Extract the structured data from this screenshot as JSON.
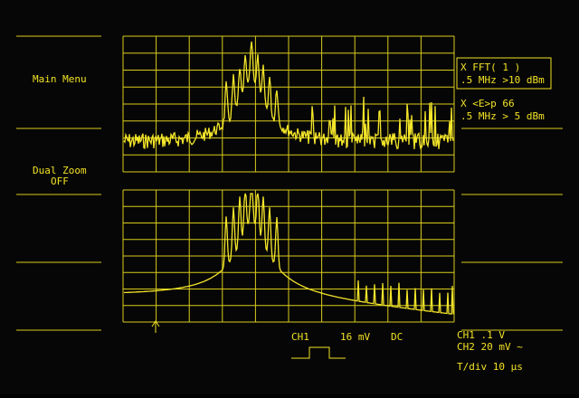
{
  "menu": {
    "main_menu": "Main Menu",
    "dual_zoom": "Dual Zoom",
    "dual_zoom_state": "OFF"
  },
  "readouts": {
    "fft_line1": "X FFT( 1 )",
    "fft_line2": ".5 MHz >10 dBm",
    "ep_line1": "X <E>p    66",
    "ep_line2": ".5 MHz > 5 dBm"
  },
  "status": {
    "trigger_channel": "CH1",
    "trigger_level": "16 mV",
    "trigger_coupling": "DC",
    "ch1": "CH1  .1  V",
    "ch2": "CH2  20 mV ~",
    "timebase": "T/div 10 µs"
  }
}
